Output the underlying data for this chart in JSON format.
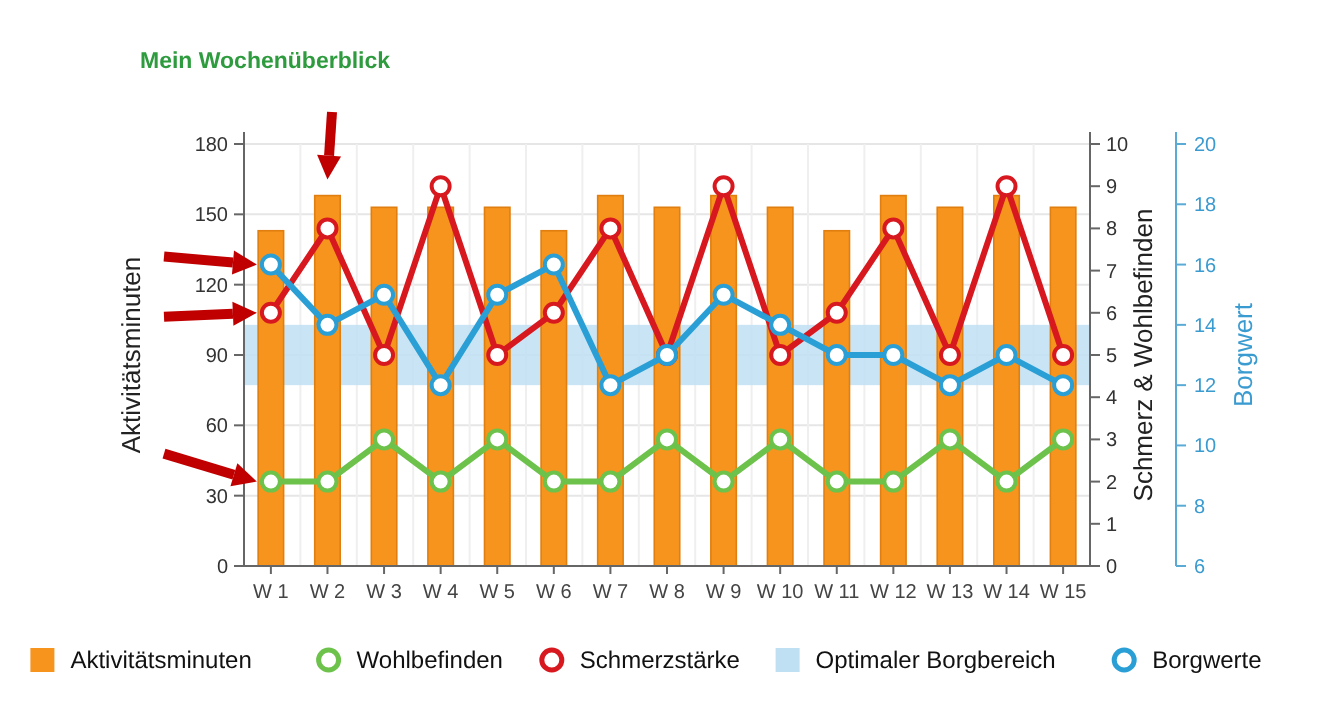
{
  "chart_data": {
    "type": "bar",
    "title": "Mein Wochenüberblick",
    "ylabel": "Aktivitätsminuten",
    "y2label": "Schmerz & Wohlbefinden",
    "y3label": "Borgwert",
    "categories": [
      "W 1",
      "W 2",
      "W 3",
      "W 4",
      "W 5",
      "W 6",
      "W 7",
      "W 8",
      "W 9",
      "W 10",
      "W 11",
      "W 12",
      "W 13",
      "W 14",
      "W 15"
    ],
    "series": [
      {
        "name": "Aktivitätsminuten",
        "color": "#f7941d",
        "values": [
          143,
          158,
          153,
          153,
          153,
          143,
          158,
          153,
          158,
          153,
          143,
          158,
          153,
          158,
          153
        ]
      },
      {
        "name": "Wohlbefinden",
        "type": "line",
        "axis": "y2",
        "color": "#6cc24a",
        "values": [
          2,
          2,
          3,
          2,
          3,
          2,
          2,
          3,
          2,
          3,
          2,
          2,
          3,
          2,
          3
        ]
      },
      {
        "name": "Schmerzstärke",
        "type": "line",
        "axis": "y2",
        "color": "#d7191f",
        "values": [
          6,
          8,
          5,
          9,
          5,
          6,
          8,
          5,
          9,
          5,
          6,
          8,
          5,
          9,
          5
        ]
      },
      {
        "name": "Borgwerte",
        "type": "line",
        "axis": "y3",
        "color": "#2a9fd6",
        "values": [
          16,
          14,
          15,
          12,
          15,
          16,
          12,
          13,
          15,
          14,
          13,
          13,
          12,
          13,
          12
        ]
      }
    ],
    "bands": [
      {
        "axis": "y3",
        "from": 12,
        "to": 14,
        "label": "Optimaler Borgbereich",
        "color": "#bfe0f3"
      }
    ],
    "ylim": [
      0,
      180
    ],
    "yticks": [
      0,
      30,
      60,
      90,
      120,
      150,
      180
    ],
    "y2lim": [
      0,
      10
    ],
    "y2ticks": [
      0,
      1,
      2,
      3,
      4,
      5,
      6,
      7,
      8,
      9,
      10
    ],
    "y3lim": [
      6,
      20
    ],
    "y3ticks": [
      6,
      8,
      10,
      12,
      14,
      16,
      18,
      20
    ],
    "grid": true,
    "legend": "bottom",
    "marker": "circle",
    "line_style": "solid"
  }
}
